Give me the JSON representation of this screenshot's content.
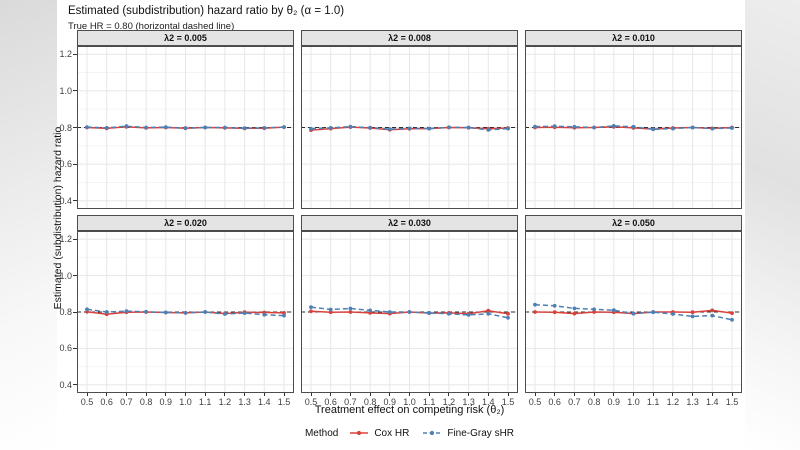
{
  "title": "Estimated (subdistribution) hazard ratio by θ₂ (α = 1.0)",
  "subtitle": "True HR = 0.80 (horizontal dashed line)",
  "chart_data": {
    "type": "line",
    "xlabel": "Treatment effect on competing risk (θ₂)",
    "ylabel": "Estimated (subdistribution) hazard ratio",
    "x": [
      0.5,
      0.6,
      0.7,
      0.8,
      0.9,
      1.0,
      1.1,
      1.2,
      1.3,
      1.4,
      1.5
    ],
    "yticks": [
      0.4,
      0.6,
      0.8,
      1.0,
      1.2
    ],
    "yminor": [
      0.5,
      0.7,
      0.9,
      1.1
    ],
    "ylim": [
      0.355,
      1.245
    ],
    "reference_line": 0.8,
    "grid": "on",
    "legend": {
      "title": "Method",
      "position": "bottom",
      "entries": [
        {
          "name": "cox-hr",
          "label": "Cox HR",
          "color": "#D8423D",
          "dash": "solid"
        },
        {
          "name": "fine-gray-shr",
          "label": "Fine-Gray sHR",
          "color": "#4D80B4",
          "dash": "dashed"
        }
      ]
    },
    "facets": [
      {
        "label": "λ2 = 0.005",
        "series": [
          {
            "name": "Cox HR",
            "values": [
              0.8,
              0.795,
              0.804,
              0.798,
              0.8,
              0.796,
              0.8,
              0.798,
              0.795,
              0.796,
              0.802
            ]
          },
          {
            "name": "Fine-Gray sHR",
            "values": [
              0.802,
              0.798,
              0.807,
              0.8,
              0.802,
              0.796,
              0.8,
              0.8,
              0.796,
              0.798,
              0.802
            ]
          }
        ]
      },
      {
        "label": "λ2 = 0.008",
        "series": [
          {
            "name": "Cox HR",
            "values": [
              0.786,
              0.794,
              0.802,
              0.797,
              0.788,
              0.793,
              0.794,
              0.8,
              0.799,
              0.793,
              0.797
            ]
          },
          {
            "name": "Fine-Gray sHR",
            "values": [
              0.793,
              0.798,
              0.805,
              0.799,
              0.791,
              0.795,
              0.794,
              0.801,
              0.8,
              0.787,
              0.794
            ]
          }
        ]
      },
      {
        "label": "λ2 = 0.010",
        "series": [
          {
            "name": "Cox HR",
            "values": [
              0.8,
              0.801,
              0.799,
              0.8,
              0.804,
              0.798,
              0.791,
              0.797,
              0.8,
              0.795,
              0.8
            ]
          },
          {
            "name": "Fine-Gray sHR",
            "values": [
              0.805,
              0.807,
              0.804,
              0.8,
              0.809,
              0.804,
              0.79,
              0.794,
              0.8,
              0.794,
              0.797
            ]
          }
        ]
      },
      {
        "label": "λ2 = 0.020",
        "series": [
          {
            "name": "Cox HR",
            "values": [
              0.801,
              0.788,
              0.799,
              0.8,
              0.797,
              0.795,
              0.8,
              0.791,
              0.799,
              0.797,
              0.795
            ]
          },
          {
            "name": "Fine-Gray sHR",
            "values": [
              0.815,
              0.8,
              0.805,
              0.801,
              0.798,
              0.795,
              0.8,
              0.789,
              0.794,
              0.785,
              0.78
            ]
          }
        ]
      },
      {
        "label": "λ2 = 0.030",
        "series": [
          {
            "name": "Cox HR",
            "values": [
              0.804,
              0.799,
              0.8,
              0.795,
              0.791,
              0.8,
              0.794,
              0.795,
              0.79,
              0.807,
              0.79
            ]
          },
          {
            "name": "Fine-Gray sHR",
            "values": [
              0.827,
              0.814,
              0.819,
              0.809,
              0.8,
              0.8,
              0.795,
              0.79,
              0.784,
              0.79,
              0.768
            ]
          }
        ]
      },
      {
        "label": "λ2 = 0.050",
        "series": [
          {
            "name": "Cox HR",
            "values": [
              0.8,
              0.799,
              0.791,
              0.8,
              0.799,
              0.791,
              0.8,
              0.8,
              0.799,
              0.809,
              0.794
            ]
          },
          {
            "name": "Fine-Gray sHR",
            "values": [
              0.84,
              0.834,
              0.82,
              0.815,
              0.81,
              0.791,
              0.799,
              0.789,
              0.776,
              0.78,
              0.757
            ]
          }
        ]
      }
    ]
  }
}
